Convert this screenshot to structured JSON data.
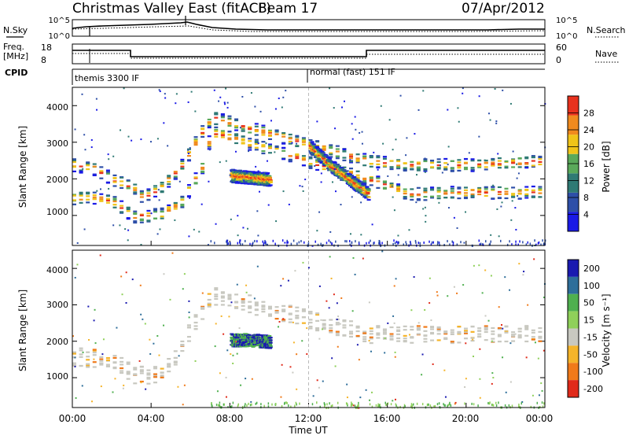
{
  "header": {
    "title": "Christmas Valley East (fitACF)",
    "beam": "Beam 17",
    "date": "07/Apr/2012"
  },
  "strips": {
    "nsky_label": "N.Sky",
    "nsky_ticks": [
      "10^5",
      "10^0"
    ],
    "nsearch_label": "N.Search",
    "nsearch_ticks": [
      "10^5",
      "10^0"
    ],
    "freq_label_1": "Freq.",
    "freq_label_2": "[MHz]",
    "freq_ticks": [
      "18",
      "8"
    ],
    "nave_label": "Nave",
    "nave_ticks": [
      "60",
      "0"
    ],
    "cpid_label": "CPID",
    "cpid_segments": [
      {
        "label": "themis 3300 IF",
        "start_hour": 0
      },
      {
        "label": "normal (fast) 151 IF",
        "start_hour": 12
      }
    ]
  },
  "axes": {
    "x_ticks": [
      "00:00",
      "04:00",
      "08:00",
      "12:00",
      "16:00",
      "20:00",
      "00:00"
    ],
    "x_label": "Time UT",
    "y_label": "Slant Range [km]",
    "y_ticks": [
      "1000",
      "2000",
      "3000",
      "4000"
    ]
  },
  "colorbars": {
    "power": {
      "label": "Power [dB]",
      "ticks": [
        "4",
        "8",
        "12",
        "16",
        "20",
        "24",
        "28"
      ],
      "colors": [
        "#1a1ae6",
        "#2e4fa8",
        "#2f7a74",
        "#5aa95a",
        "#f0c419",
        "#f08a1e",
        "#e8321e"
      ]
    },
    "velocity": {
      "label": "Velocity [m s⁻¹]",
      "ticks": [
        "200",
        "100",
        "50",
        "15",
        "-15",
        "-50",
        "-100",
        "-200"
      ],
      "colors": [
        "#1a1ab0",
        "#2e6e9a",
        "#4fb04f",
        "#8fd05a",
        "#c8c8c0",
        "#f5b42a",
        "#f07a1a",
        "#e02a1a"
      ]
    }
  },
  "chart_data": [
    {
      "type": "heatmap",
      "title": "Power",
      "xlabel": "Time UT",
      "ylabel": "Slant Range [km]",
      "xlim": [
        0,
        24
      ],
      "ylim": [
        180,
        4500
      ],
      "colorbar": {
        "label": "Power [dB]",
        "range": [
          0,
          30
        ]
      },
      "bands": [
        {
          "name": "main echo lower edge",
          "x": [
            0,
            1,
            2,
            3,
            3.5,
            4.5,
            5.5,
            6.5,
            7.0,
            15.0,
            17,
            20,
            24
          ],
          "y": [
            1500,
            1500,
            1400,
            1000,
            1000,
            1050,
            1400,
            2300,
            3300,
            2000,
            1600,
            1650,
            1650
          ]
        },
        {
          "name": "main echo upper edge",
          "x": [
            0,
            1,
            2,
            3,
            3.5,
            4.5,
            5.5,
            6.5,
            7.0,
            15.0,
            17,
            20,
            24
          ],
          "y": [
            2400,
            2300,
            2000,
            1800,
            1500,
            1800,
            2400,
            3300,
            3700,
            2500,
            2400,
            2400,
            2500
          ]
        },
        {
          "name": "morning echo",
          "x": [
            8.0,
            9.0,
            10.0
          ],
          "y": [
            2100,
            2050,
            2000
          ]
        },
        {
          "name": "post-noon echo",
          "x": [
            12.0,
            13.0,
            14.0,
            15.0
          ],
          "y": [
            2900,
            2400,
            2000,
            1600
          ]
        }
      ]
    },
    {
      "type": "heatmap",
      "title": "Velocity",
      "xlabel": "Time UT",
      "ylabel": "Slant Range [km]",
      "xlim": [
        0,
        24
      ],
      "ylim": [
        180,
        4500
      ],
      "colorbar": {
        "label": "Velocity [m s⁻¹]",
        "range": [
          -200,
          200
        ]
      },
      "bands": [
        {
          "name": "ground scatter",
          "x": [
            0,
            2,
            3,
            4,
            5,
            6,
            7,
            15,
            20,
            24
          ],
          "y": [
            1600,
            1500,
            1100,
            1100,
            1400,
            2400,
            3300,
            2200,
            2200,
            2200
          ]
        },
        {
          "name": "morning echo",
          "x": [
            8.0,
            9.0,
            10.0
          ],
          "y": [
            2050,
            2050,
            2000
          ]
        }
      ]
    }
  ]
}
